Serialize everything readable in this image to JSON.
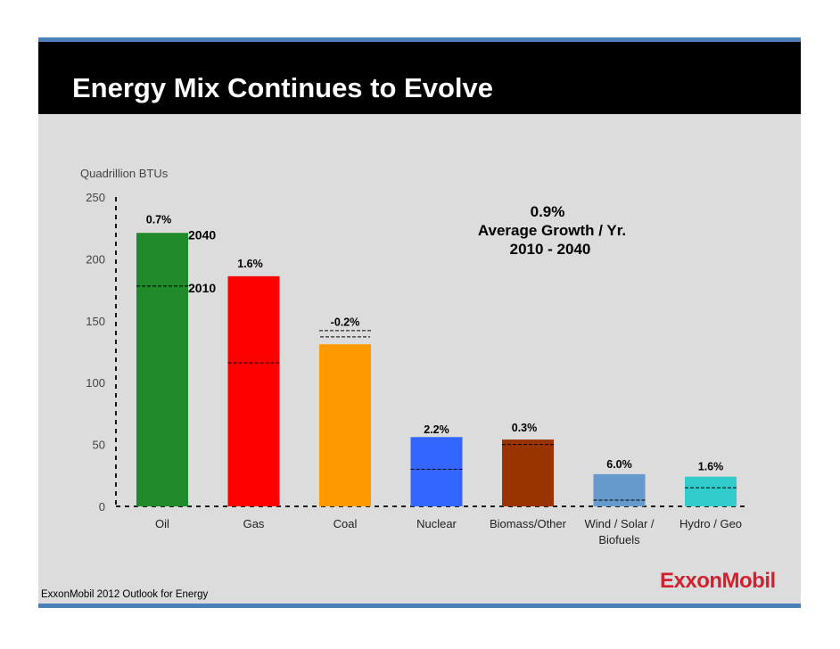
{
  "title": "Energy Mix Continues to Evolve",
  "footer": "ExxonMobil 2012 Outlook for Energy",
  "logo": "ExxonMobil",
  "colors": {
    "title_bg": "#000000",
    "panel_bg": "#dcdcdc",
    "rule": "#4a7fb8",
    "logo": "#d3202f"
  },
  "chart_data": {
    "type": "bar",
    "title": "",
    "ylabel": "Quadrillion BTUs",
    "xlabel": "",
    "ylim": [
      0,
      250
    ],
    "yticks": [
      0,
      50,
      100,
      150,
      200,
      250
    ],
    "categories": [
      "Oil",
      "Gas",
      "Coal",
      "Nuclear",
      "Biomass/Other",
      "Wind / Solar / Biofuels",
      "Hydro / Geo"
    ],
    "category_label_lines": [
      [
        "Oil"
      ],
      [
        "Gas"
      ],
      [
        "Coal"
      ],
      [
        "Nuclear"
      ],
      [
        "Biomass/Other"
      ],
      [
        "Wind / Solar /",
        "Biofuels"
      ],
      [
        "Hydro / Geo"
      ]
    ],
    "series": [
      {
        "name": "2040",
        "values": [
          221,
          186,
          131,
          56,
          54,
          26,
          24
        ]
      },
      {
        "name": "2010",
        "values": [
          178,
          116,
          142,
          30,
          50,
          5,
          15
        ]
      }
    ],
    "growth_labels": [
      "0.7%",
      "1.6%",
      "-0.2%",
      "2.2%",
      "0.3%",
      "6.0%",
      "1.6%"
    ],
    "colors": [
      "#1e8a2a",
      "#ff0000",
      "#ff9900",
      "#3366ff",
      "#993300",
      "#6699cc",
      "#33cccc"
    ],
    "series_labels": {
      "2040": "2040",
      "2010": "2010"
    },
    "annotation": [
      "0.9%",
      "Average Growth / Yr.",
      "2010 - 2040"
    ],
    "grid": false
  }
}
